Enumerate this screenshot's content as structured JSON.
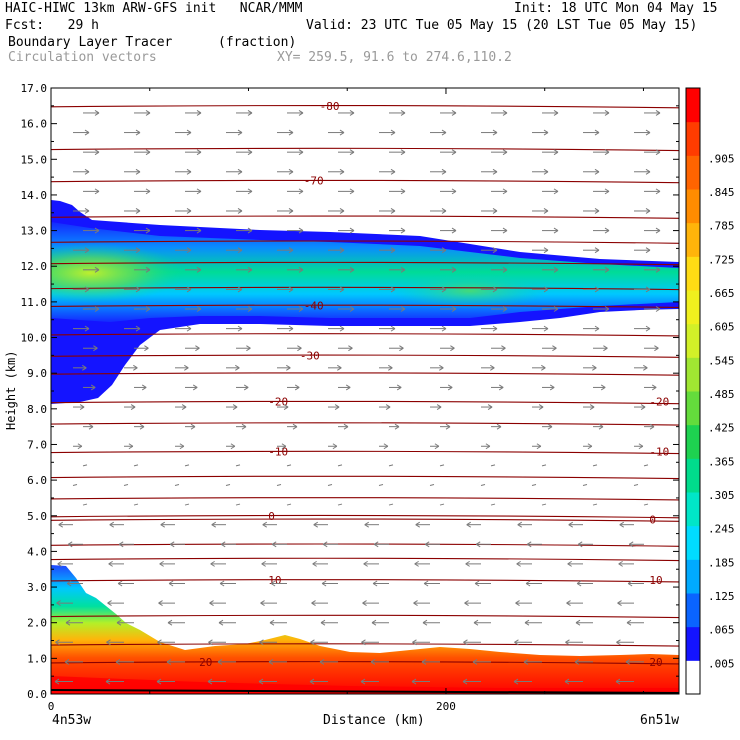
{
  "header": {
    "line1_left": "HAIC-HIWC 13km ARW-GFS init   NCAR/MMM",
    "line1_right": "Init: 18 UTC Mon 04 May 15",
    "line2_left": "Fcst:   29 h",
    "line2_right": "Valid: 23 UTC Tue 05 May 15 (20 LST Tue 05 May 15)",
    "field_name": "Boundary Layer Tracer",
    "field_units": "(fraction)",
    "vector_name": "Circulation vectors",
    "xy_text": "XY= 259.5, 91.6 to 274.6,110.2"
  },
  "chart_data": {
    "type": "heatmap",
    "title": "Boundary Layer Tracer",
    "units": "(fraction)",
    "xlabel": "Distance (km)",
    "ylabel": "Height (km)",
    "xlim": [
      0,
      318
    ],
    "ylim": [
      0,
      17
    ],
    "x_ticks": [
      {
        "value": 0,
        "label": "0"
      },
      {
        "value": 200,
        "label": "200"
      }
    ],
    "x_endpoint_labels": [
      "4n53w",
      "6n51w"
    ],
    "y_ticks": [
      "0.0",
      "1.0",
      "2.0",
      "3.0",
      "4.0",
      "5.0",
      "6.0",
      "7.0",
      "8.0",
      "9.0",
      "10.0",
      "11.0",
      "12.0",
      "13.0",
      "14.0",
      "15.0",
      "16.0",
      "17.0"
    ],
    "colorbar_labels": [
      ".005",
      ".065",
      ".125",
      ".185",
      ".245",
      ".305",
      ".365",
      ".425",
      ".485",
      ".545",
      ".605",
      ".665",
      ".725",
      ".785",
      ".845",
      ".905"
    ],
    "colorbar_colors": [
      "#ffffff",
      "#1414ff",
      "#0a64ff",
      "#00aaff",
      "#00dcff",
      "#00e6c8",
      "#00dc8c",
      "#1ed250",
      "#64dc3c",
      "#a0e632",
      "#d2f028",
      "#f0f01e",
      "#ffdc14",
      "#ffb40a",
      "#ff8c00",
      "#ff6400",
      "#ff3c00",
      "#ff0000"
    ],
    "temperature_contours": [
      {
        "label": "-80",
        "height_km": 16.5,
        "label_x_km": 136
      },
      {
        "label": "-70",
        "height_km": 14.4,
        "label_x_km": 128
      },
      {
        "label": "-40",
        "height_km": 10.9,
        "label_x_km": 128
      },
      {
        "label": "-30",
        "height_km": 9.5,
        "label_x_km": 126
      },
      {
        "label": "-20",
        "height_km": 8.2,
        "label_x_km": 110
      },
      {
        "label": "-20",
        "height_km": 8.2,
        "label_x_km": 303
      },
      {
        "label": "-10",
        "height_km": 6.8,
        "label_x_km": 110
      },
      {
        "label": "-10",
        "height_km": 6.8,
        "label_x_km": 303
      },
      {
        "label": "0",
        "height_km": 5.0,
        "label_x_km": 110
      },
      {
        "label": "0",
        "height_km": 4.9,
        "label_x_km": 303
      },
      {
        "label": "10",
        "height_km": 3.2,
        "label_x_km": 110
      },
      {
        "label": "10",
        "height_km": 3.2,
        "label_x_km": 303
      },
      {
        "label": "20",
        "height_km": 0.9,
        "label_x_km": 75
      },
      {
        "label": "20",
        "height_km": 0.9,
        "label_x_km": 303
      }
    ],
    "unlabeled_contour_heights_km": [
      15.3,
      13.4,
      12.7,
      12.1,
      11.4,
      10.1,
      9.0,
      7.6,
      6.1,
      5.5,
      4.2,
      3.8,
      2.2,
      1.4
    ],
    "tracer_layers": [
      {
        "name": "upper plume",
        "base_km": 10.6,
        "top_km": 13.0,
        "core_km": 11.6,
        "core_value": 0.42
      },
      {
        "name": "boundary layer",
        "base_km": 0.0,
        "top_km": 1.2,
        "surface_value": 0.99
      }
    ],
    "vectors": {
      "upper_direction": "east",
      "lower_direction": "west"
    }
  }
}
